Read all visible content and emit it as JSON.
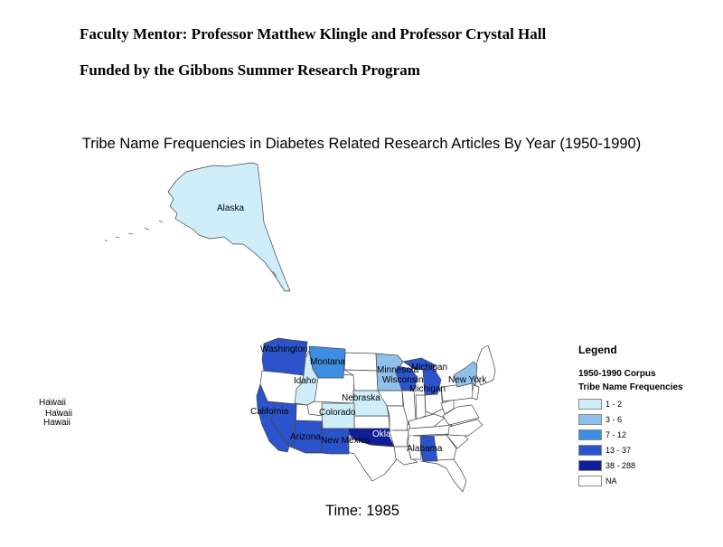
{
  "header": {
    "mentor": "Faculty Mentor: Professor Matthew Klingle and Professor Crystal Hall",
    "funding": "Funded by the Gibbons Summer Research Program"
  },
  "map": {
    "title": "Tribe Name Frequencies in Diabetes Related Research Articles By Year (1950-1990)",
    "time_label": "Time: 1985",
    "state_labels": {
      "alaska": "Alaska",
      "washington": "Washington",
      "montana": "Montana",
      "idaho": "Idaho",
      "minnesota": "Minnesota",
      "michigan_upper": "Michigan",
      "wisconsin": "Wisconsin",
      "michigan_lower": "Michigan",
      "new_york": "New York",
      "nebraska": "Nebraska",
      "colorado": "Colorado",
      "california": "California",
      "arizona": "Arizona",
      "new_mexico": "New Mexico",
      "oklahoma": "Oklahoma",
      "alabama": "Alabama",
      "hawaii_1": "Hawaii",
      "hawaii_2": "Hawaii",
      "hawaii_3": "Hawaii"
    },
    "state_frequency_class": {
      "Alaska": "1 - 2",
      "Washington": "13 - 37",
      "Montana": "7 - 12",
      "Idaho": "1 - 2",
      "Minnesota": "3 - 6",
      "Wisconsin": "13 - 37",
      "Michigan": "13 - 37",
      "New York": "3 - 6",
      "Nebraska": "1 - 2",
      "Colorado": "1 - 2",
      "California": "13 - 37",
      "Nevada": "13 - 37",
      "Arizona": "13 - 37",
      "New Mexico": "13 - 37",
      "Oklahoma": "38 - 288",
      "Alabama": "13 - 37"
    }
  },
  "legend": {
    "title": "Legend",
    "corpus": "1950-1990 Corpus",
    "subtitle": "Tribe Name Frequencies",
    "classes": [
      {
        "label": "1 - 2",
        "color": "#cfeef9"
      },
      {
        "label": "3 - 6",
        "color": "#8fc0ec"
      },
      {
        "label": "7 - 12",
        "color": "#3d8ee2"
      },
      {
        "label": "13 - 37",
        "color": "#2b54cc"
      },
      {
        "label": "38 - 288",
        "color": "#101f99"
      },
      {
        "label": "NA",
        "color": "#ffffff"
      }
    ]
  }
}
